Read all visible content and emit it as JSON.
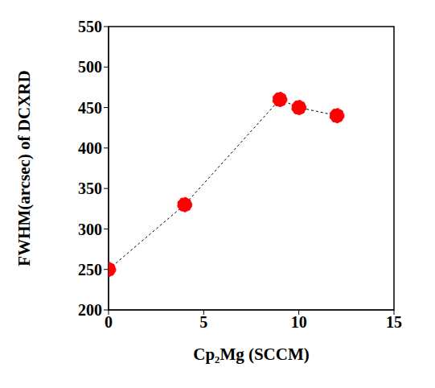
{
  "chart_data": {
    "type": "line",
    "x_label": "Cp₂Mg (SCCM)",
    "y_label": "FWHM(arcsec) of DCXRD",
    "x": [
      0,
      4,
      9,
      10,
      12
    ],
    "values": [
      250,
      330,
      460,
      450,
      440
    ],
    "color": "#ff0000",
    "marker": "circle",
    "line_style": "dotted",
    "xlim": [
      0,
      15
    ],
    "xticks": [
      0,
      5,
      10,
      15
    ],
    "ylim": [
      200,
      550
    ],
    "yticks": [
      200,
      250,
      300,
      350,
      400,
      450,
      500,
      550
    ],
    "grid": false
  }
}
